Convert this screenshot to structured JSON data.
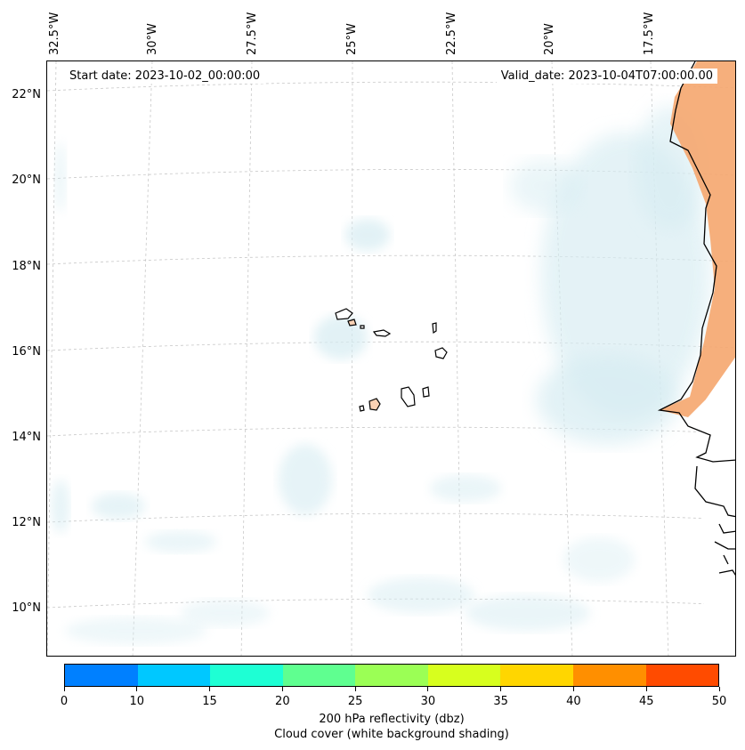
{
  "header": {
    "start_date": "Start date: 2023-10-02_00:00:00",
    "valid_date": "Valid_date: 2023-10-04T07:00:00.00"
  },
  "longitude_labels": [
    "32.5°W",
    "30°W",
    "27.5°W",
    "25°W",
    "22.5°W",
    "20°W",
    "17.5°W"
  ],
  "latitude_labels": [
    "22°N",
    "20°N",
    "18°N",
    "16°N",
    "14°N",
    "12°N",
    "10°N"
  ],
  "map": {
    "region": "Cape Verde Islands and West African coast",
    "features": [
      "coastline",
      "cape-verde-islands",
      "gridlines"
    ],
    "colors": {
      "cloud_shading": "#d6ecf2",
      "land_reflectivity": "#f5a66e",
      "coastline": "#000000",
      "gridline": "#c8c8c8"
    }
  },
  "colorbar": {
    "ticks": [
      "0",
      "10",
      "15",
      "20",
      "25",
      "30",
      "35",
      "40",
      "45",
      "50"
    ],
    "colors": [
      "#0080ff",
      "#00c8ff",
      "#1effd4",
      "#5fff90",
      "#9bff55",
      "#d7ff1e",
      "#ffd600",
      "#ff8f00",
      "#ff4b00"
    ],
    "label_line1": "200 hPa reflectivity (dbz)",
    "label_line2": "Cloud cover (white background shading)"
  }
}
